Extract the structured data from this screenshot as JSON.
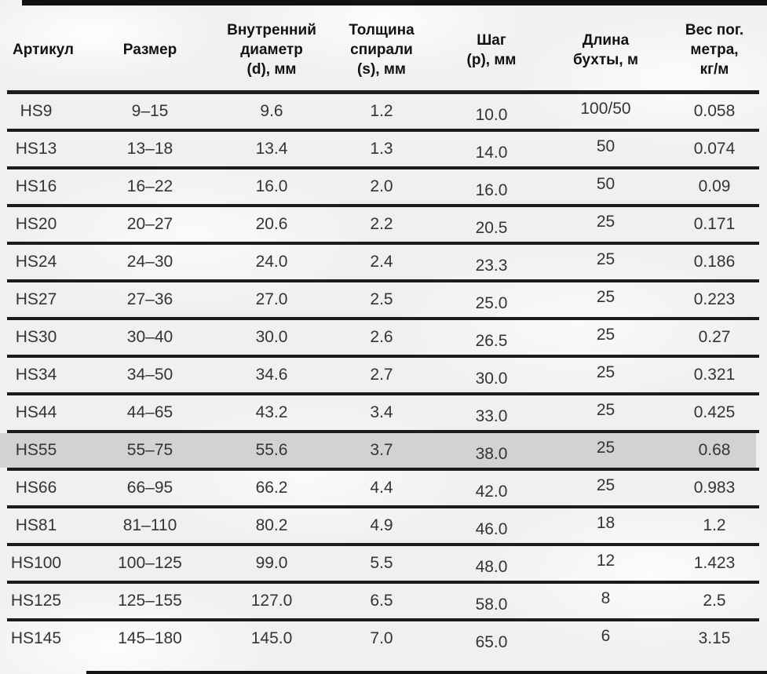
{
  "table": {
    "title_semantic": "spiral-hose-specifications",
    "highlighted_row": "HS55",
    "columns": [
      {
        "id": "article",
        "label": "Артикул"
      },
      {
        "id": "size",
        "label": "Размер"
      },
      {
        "id": "inner_diameter",
        "label": "Внутренний\nдиаметр\n(d), мм"
      },
      {
        "id": "spiral_thickness",
        "label": "Толщина\nспирали\n(s), мм"
      },
      {
        "id": "step",
        "label": "Шаг\n(p), мм"
      },
      {
        "id": "coil_length",
        "label": "Длина\nбухты, м"
      },
      {
        "id": "weight",
        "label": "Вес пог.\nметра,\nкг/м"
      }
    ],
    "rows": [
      {
        "article": "HS9",
        "size": "9–15",
        "inner_diameter": "9.6",
        "spiral_thickness": "1.2",
        "step": "10.0",
        "coil_length": "100/50",
        "weight": "0.058"
      },
      {
        "article": "HS13",
        "size": "13–18",
        "inner_diameter": "13.4",
        "spiral_thickness": "1.3",
        "step": "14.0",
        "coil_length": "50",
        "weight": "0.074"
      },
      {
        "article": "HS16",
        "size": "16–22",
        "inner_diameter": "16.0",
        "spiral_thickness": "2.0",
        "step": "16.0",
        "coil_length": "50",
        "weight": "0.09"
      },
      {
        "article": "HS20",
        "size": "20–27",
        "inner_diameter": "20.6",
        "spiral_thickness": "2.2",
        "step": "20.5",
        "coil_length": "25",
        "weight": "0.171"
      },
      {
        "article": "HS24",
        "size": "24–30",
        "inner_diameter": "24.0",
        "spiral_thickness": "2.4",
        "step": "23.3",
        "coil_length": "25",
        "weight": "0.186"
      },
      {
        "article": "HS27",
        "size": "27–36",
        "inner_diameter": "27.0",
        "spiral_thickness": "2.5",
        "step": "25.0",
        "coil_length": "25",
        "weight": "0.223"
      },
      {
        "article": "HS30",
        "size": "30–40",
        "inner_diameter": "30.0",
        "spiral_thickness": "2.6",
        "step": "26.5",
        "coil_length": "25",
        "weight": "0.27"
      },
      {
        "article": "HS34",
        "size": "34–50",
        "inner_diameter": "34.6",
        "spiral_thickness": "2.7",
        "step": "30.0",
        "coil_length": "25",
        "weight": "0.321"
      },
      {
        "article": "HS44",
        "size": "44–65",
        "inner_diameter": "43.2",
        "spiral_thickness": "3.4",
        "step": "33.0",
        "coil_length": "25",
        "weight": "0.425"
      },
      {
        "article": "HS55",
        "size": "55–75",
        "inner_diameter": "55.6",
        "spiral_thickness": "3.7",
        "step": "38.0",
        "coil_length": "25",
        "weight": "0.68"
      },
      {
        "article": "HS66",
        "size": "66–95",
        "inner_diameter": "66.2",
        "spiral_thickness": "4.4",
        "step": "42.0",
        "coil_length": "25",
        "weight": "0.983"
      },
      {
        "article": "HS81",
        "size": "81–110",
        "inner_diameter": "80.2",
        "spiral_thickness": "4.9",
        "step": "46.0",
        "coil_length": "18",
        "weight": "1.2"
      },
      {
        "article": "HS100",
        "size": "100–125",
        "inner_diameter": "99.0",
        "spiral_thickness": "5.5",
        "step": "48.0",
        "coil_length": "12",
        "weight": "1.423"
      },
      {
        "article": "HS125",
        "size": "125–155",
        "inner_diameter": "127.0",
        "spiral_thickness": "6.5",
        "step": "58.0",
        "coil_length": "8",
        "weight": "2.5"
      },
      {
        "article": "HS145",
        "size": "145–180",
        "inner_diameter": "145.0",
        "spiral_thickness": "7.0",
        "step": "65.0",
        "coil_length": "6",
        "weight": "3.15"
      }
    ]
  },
  "colors": {
    "background": "#eef0f2",
    "rule_line": "#1c1c1c",
    "highlight_row": "#d2d2d2",
    "header_text": "#121212",
    "cell_text": "#343434",
    "edge_bar": "#121212"
  }
}
